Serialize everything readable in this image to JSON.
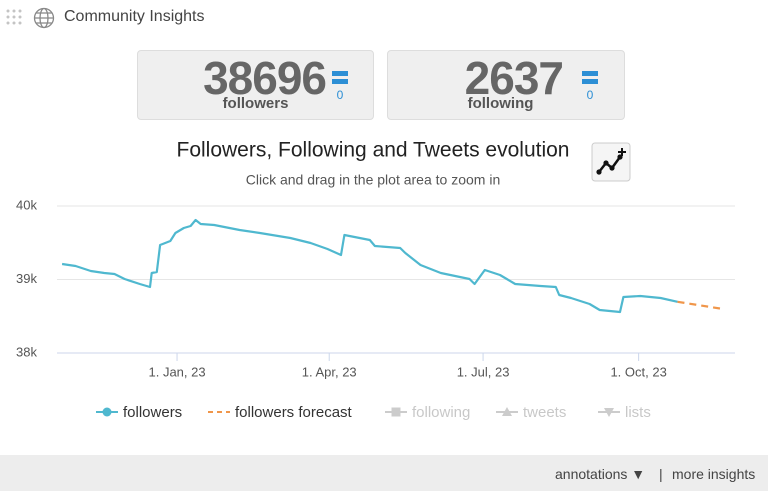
{
  "header": {
    "title": "Community Insights"
  },
  "stats": [
    {
      "value": "38696",
      "label": "followers",
      "change": "0"
    },
    {
      "value": "2637",
      "label": "following",
      "change": "0"
    }
  ],
  "chart_data": {
    "type": "line",
    "title": "Followers, Following and Tweets evolution",
    "subtitle": "Click and drag in the plot area to zoom in",
    "xlim": [
      "2022-10-22",
      "2023-11-27"
    ],
    "xticks": [
      {
        "value": "2023-01-01",
        "label": "1. Jan, 23"
      },
      {
        "value": "2023-04-01",
        "label": "1. Apr, 23"
      },
      {
        "value": "2023-07-01",
        "label": "1. Jul, 23"
      },
      {
        "value": "2023-10-01",
        "label": "1. Oct, 23"
      }
    ],
    "ylim": [
      38000,
      40000
    ],
    "yticks": [
      {
        "value": 38000,
        "label": "38k"
      },
      {
        "value": 39000,
        "label": "39k"
      },
      {
        "value": 40000,
        "label": "40k"
      }
    ],
    "grid": true,
    "series": [
      {
        "name": "followers",
        "color": "#4fb8cf",
        "visible": true,
        "dash": false,
        "x": [
          "2022-10-25",
          "2022-11-02",
          "2022-11-11",
          "2022-11-19",
          "2022-11-25",
          "2022-12-01",
          "2022-12-10",
          "2022-12-16",
          "2022-12-17",
          "2022-12-20",
          "2022-12-22",
          "2022-12-28",
          "2022-12-31",
          "2023-01-05",
          "2023-01-09",
          "2023-01-12",
          "2023-01-15",
          "2023-01-23",
          "2023-02-07",
          "2023-02-19",
          "2023-03-09",
          "2023-03-21",
          "2023-03-31",
          "2023-04-08",
          "2023-04-10",
          "2023-04-25",
          "2023-04-28",
          "2023-05-13",
          "2023-05-16",
          "2023-05-25",
          "2023-06-06",
          "2023-06-23",
          "2023-06-26",
          "2023-07-02",
          "2023-07-11",
          "2023-07-20",
          "2023-08-04",
          "2023-08-13",
          "2023-08-15",
          "2023-08-22",
          "2023-09-02",
          "2023-09-08",
          "2023-09-20",
          "2023-09-22",
          "2023-10-02",
          "2023-10-14",
          "2023-10-24"
        ],
        "values": [
          39211,
          39184,
          39116,
          39088,
          39075,
          39007,
          38939,
          38898,
          39088,
          39102,
          39469,
          39524,
          39633,
          39701,
          39728,
          39810,
          39755,
          39741,
          39673,
          39633,
          39565,
          39497,
          39415,
          39333,
          39605,
          39537,
          39456,
          39429,
          39361,
          39197,
          39088,
          39007,
          38939,
          39129,
          39061,
          38939,
          38912,
          38898,
          38789,
          38748,
          38667,
          38585,
          38558,
          38762,
          38776,
          38748,
          38696
        ]
      },
      {
        "name": "followers forecast",
        "color": "#f0964a",
        "visible": true,
        "dash": true,
        "x": [
          "2023-10-24",
          "2023-11-20"
        ],
        "values": [
          38696,
          38599
        ]
      },
      {
        "name": "following",
        "color": "#cccccc",
        "visible": false,
        "dash": false,
        "x": [],
        "values": []
      },
      {
        "name": "tweets",
        "color": "#cccccc",
        "visible": false,
        "dash": false,
        "x": [],
        "values": []
      },
      {
        "name": "lists",
        "color": "#cccccc",
        "visible": false,
        "dash": false,
        "x": [],
        "values": []
      }
    ]
  },
  "footer": {
    "annotations": "annotations ▼",
    "more": "more insights"
  }
}
